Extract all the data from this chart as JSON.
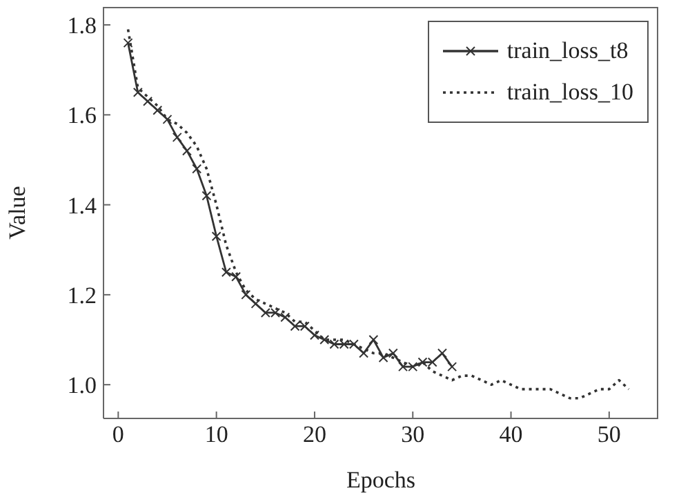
{
  "chart_data": {
    "type": "line",
    "xlabel": "Epochs",
    "ylabel": "Value",
    "xlim": [
      -1.5,
      55
    ],
    "ylim": [
      0.925,
      1.84
    ],
    "xticks": [
      0,
      10,
      20,
      30,
      40,
      50
    ],
    "yticks": [
      {
        "value": 1.0,
        "label": "1.0"
      },
      1.2,
      1.4,
      1.6,
      1.8
    ],
    "grid": false,
    "legend": "top right",
    "series": [
      {
        "name": "train_loss_t8",
        "color": "#333333",
        "marker": "cross",
        "line_style": "solid",
        "x": [
          1,
          2,
          3,
          4,
          5,
          6,
          7,
          8,
          9,
          10,
          11,
          12,
          13,
          14,
          15,
          16,
          17,
          18,
          19,
          20,
          21,
          22,
          23,
          24,
          25,
          26,
          27,
          28,
          29,
          30,
          31,
          32,
          33,
          34
        ],
        "values": [
          1.76,
          1.65,
          1.63,
          1.61,
          1.59,
          1.55,
          1.52,
          1.48,
          1.42,
          1.33,
          1.25,
          1.24,
          1.2,
          1.18,
          1.16,
          1.16,
          1.15,
          1.13,
          1.13,
          1.11,
          1.1,
          1.09,
          1.09,
          1.09,
          1.07,
          1.1,
          1.06,
          1.07,
          1.04,
          1.04,
          1.05,
          1.05,
          1.07,
          1.04
        ]
      },
      {
        "name": "train_loss_10",
        "color": "#333333",
        "marker": "none",
        "line_style": "dotted",
        "x": [
          1,
          2,
          3,
          4,
          5,
          6,
          7,
          8,
          9,
          10,
          11,
          12,
          13,
          14,
          15,
          16,
          17,
          18,
          19,
          20,
          21,
          22,
          23,
          24,
          25,
          26,
          27,
          28,
          29,
          30,
          31,
          32,
          33,
          34,
          35,
          36,
          37,
          38,
          39,
          40,
          41,
          42,
          43,
          44,
          45,
          46,
          47,
          48,
          49,
          50,
          51,
          52
        ],
        "values": [
          1.79,
          1.66,
          1.64,
          1.62,
          1.59,
          1.58,
          1.56,
          1.53,
          1.48,
          1.4,
          1.31,
          1.25,
          1.21,
          1.19,
          1.18,
          1.17,
          1.16,
          1.14,
          1.14,
          1.12,
          1.1,
          1.1,
          1.1,
          1.09,
          1.08,
          1.07,
          1.07,
          1.06,
          1.05,
          1.04,
          1.05,
          1.03,
          1.02,
          1.01,
          1.02,
          1.02,
          1.01,
          1.0,
          1.01,
          1.0,
          0.99,
          0.99,
          0.99,
          0.99,
          0.98,
          0.97,
          0.97,
          0.98,
          0.99,
          0.99,
          1.01,
          0.99
        ]
      }
    ]
  }
}
